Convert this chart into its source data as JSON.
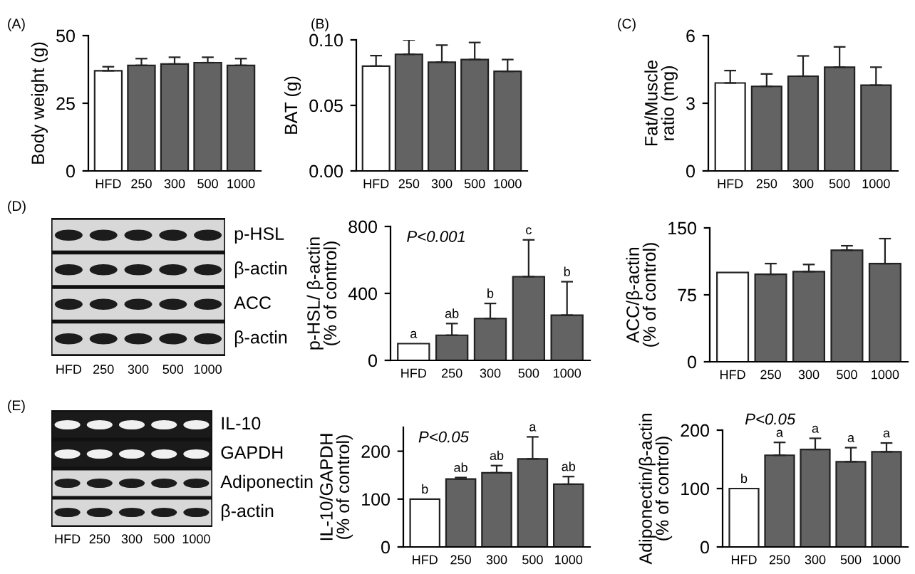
{
  "chart_data": [
    {
      "type": "bar",
      "title": "(A)",
      "ylabel": "Body weight (g)",
      "categories": [
        "HFD",
        "250",
        "300",
        "500",
        "1000"
      ],
      "values": [
        37,
        39,
        39.5,
        40,
        39
      ],
      "errors": [
        1.5,
        2.5,
        2.5,
        2,
        2.5
      ],
      "colors": [
        "#ffffff",
        "#636363",
        "#636363",
        "#636363",
        "#636363"
      ],
      "ylim": [
        0,
        50
      ],
      "yticks": [
        0,
        25,
        50
      ],
      "grid": false
    },
    {
      "type": "bar",
      "title": "(B)",
      "ylabel": "BAT (g)",
      "categories": [
        "HFD",
        "250",
        "300",
        "500",
        "1000"
      ],
      "values": [
        0.08,
        0.089,
        0.083,
        0.085,
        0.076
      ],
      "errors": [
        0.008,
        0.011,
        0.013,
        0.013,
        0.009
      ],
      "colors": [
        "#ffffff",
        "#636363",
        "#636363",
        "#636363",
        "#636363"
      ],
      "ylim": [
        0,
        0.1
      ],
      "yticks": [
        {
          "value": 0,
          "label": "0.00"
        },
        {
          "value": 0.05,
          "label": "0.05"
        },
        {
          "value": 0.1,
          "label": "0.10"
        }
      ],
      "grid": false
    },
    {
      "type": "bar",
      "title": "(C)",
      "ylabel": "Fat/Muscle\nratio (mg)",
      "categories": [
        "HFD",
        "250",
        "300",
        "500",
        "1000"
      ],
      "values": [
        3.9,
        3.75,
        4.2,
        4.6,
        3.8
      ],
      "errors": [
        0.55,
        0.55,
        0.9,
        0.9,
        0.8
      ],
      "colors": [
        "#ffffff",
        "#636363",
        "#636363",
        "#636363",
        "#636363"
      ],
      "ylim": [
        0,
        6
      ],
      "yticks": [
        0,
        3,
        6
      ],
      "grid": false
    },
    {
      "type": "other",
      "title": "(D)",
      "categories": [
        "HFD",
        "250",
        "300",
        "500",
        "1000"
      ],
      "annotations": [
        "p-HSL",
        "β-actin",
        "ACC",
        "β-actin"
      ]
    },
    {
      "type": "bar",
      "ylabel": "p-HSL/ β-actin\n(% of control)",
      "categories": [
        "HFD",
        "250",
        "300",
        "500",
        "1000"
      ],
      "values": [
        100,
        150,
        250,
        500,
        270
      ],
      "errors": [
        null,
        70,
        90,
        220,
        200
      ],
      "colors": [
        "#ffffff",
        "#636363",
        "#636363",
        "#636363",
        "#636363"
      ],
      "ylim": [
        0,
        800
      ],
      "yticks": [
        0,
        400,
        800
      ],
      "grid": false,
      "annotations": [
        "P<0.001",
        {
          "text": "a",
          "x": "HFD",
          "y": 100
        },
        {
          "text": "ab",
          "x": "250",
          "y": 220
        },
        {
          "text": "b",
          "x": "300",
          "y": 340
        },
        {
          "text": "c",
          "x": "500",
          "y": 720
        },
        {
          "text": "b",
          "x": "1000",
          "y": 470
        }
      ]
    },
    {
      "type": "bar",
      "ylabel": "ACC/β-actin\n(% of control)",
      "categories": [
        "HFD",
        "250",
        "300",
        "500",
        "1000"
      ],
      "values": [
        100,
        98,
        101,
        125,
        110
      ],
      "errors": [
        null,
        12,
        8,
        5,
        28
      ],
      "colors": [
        "#ffffff",
        "#636363",
        "#636363",
        "#636363",
        "#636363"
      ],
      "ylim": [
        0,
        150
      ],
      "yticks": [
        0,
        75,
        150
      ],
      "grid": false
    },
    {
      "type": "other",
      "title": "(E)",
      "categories": [
        "HFD",
        "250",
        "300",
        "500",
        "1000"
      ],
      "annotations": [
        "IL-10",
        "GAPDH",
        "Adiponectin",
        "β-actin"
      ]
    },
    {
      "type": "bar",
      "ylabel": "IL-10/GAPDH\n(% of control)",
      "categories": [
        "HFD",
        "250",
        "300",
        "500",
        "1000"
      ],
      "values": [
        100,
        142,
        155,
        184,
        131
      ],
      "errors": [
        null,
        3,
        15,
        46,
        16
      ],
      "colors": [
        "#ffffff",
        "#636363",
        "#636363",
        "#636363",
        "#636363"
      ],
      "ylim": [
        0,
        250
      ],
      "yticks": [
        0,
        100,
        200
      ],
      "grid": false,
      "annotations": [
        "P<0.05",
        {
          "text": "b",
          "x": "HFD",
          "y": 100
        },
        {
          "text": "ab",
          "x": "250",
          "y": 145
        },
        {
          "text": "ab",
          "x": "300",
          "y": 170
        },
        {
          "text": "a",
          "x": "500",
          "y": 230
        },
        {
          "text": "ab",
          "x": "1000",
          "y": 147
        }
      ]
    },
    {
      "type": "bar",
      "ylabel": "Adiponectin/β-actin\n(% of control)",
      "categories": [
        "HFD",
        "250",
        "300",
        "500",
        "1000"
      ],
      "values": [
        100,
        157,
        167,
        146,
        163
      ],
      "errors": [
        null,
        22,
        19,
        24,
        15
      ],
      "colors": [
        "#ffffff",
        "#636363",
        "#636363",
        "#636363",
        "#636363"
      ],
      "ylim": [
        0,
        200
      ],
      "yticks": [
        0,
        100,
        200
      ],
      "grid": false,
      "annotations": [
        "P<0.05",
        {
          "text": "b",
          "x": "HFD",
          "y": 100
        },
        {
          "text": "a",
          "x": "250",
          "y": 179
        },
        {
          "text": "a",
          "x": "300",
          "y": 186
        },
        {
          "text": "a",
          "x": "500",
          "y": 170
        },
        {
          "text": "a",
          "x": "1000",
          "y": 178
        }
      ]
    }
  ]
}
